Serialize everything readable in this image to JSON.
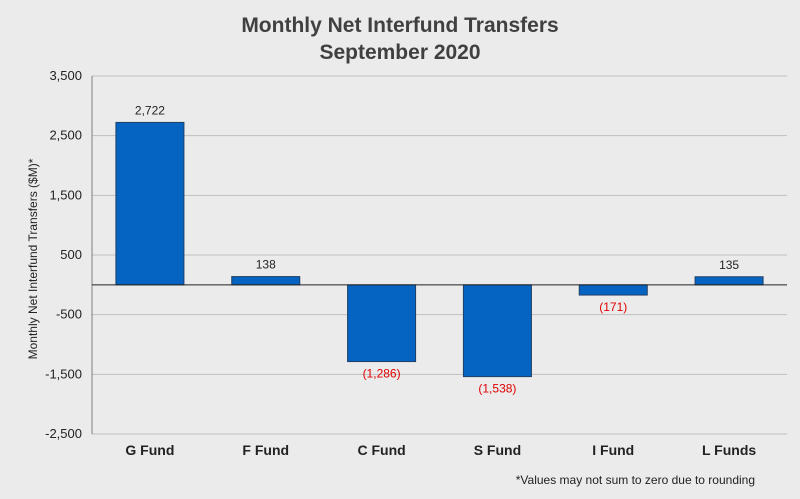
{
  "chart_data": {
    "type": "bar",
    "title": [
      "Monthly Net Interfund Transfers",
      "September 2020"
    ],
    "ylabel": "Monthly Net Interfund Transfers ($M)*",
    "xlabel": "",
    "categories": [
      "G Fund",
      "F Fund",
      "C Fund",
      "S Fund",
      "I Fund",
      "L Funds"
    ],
    "values": [
      2722,
      138,
      -1286,
      -1538,
      -171,
      135
    ],
    "data_labels": [
      "2,722",
      "138",
      "(1,286)",
      "(1,538)",
      "(171)",
      "135"
    ],
    "ylim": [
      -2500,
      3500
    ],
    "yticks": [
      -2500,
      -1500,
      -500,
      500,
      1500,
      2500,
      3500
    ],
    "ytick_labels": [
      "-2,500",
      "-1,500",
      "-500",
      "500",
      "1,500",
      "2,500",
      "3,500"
    ],
    "grid": true,
    "legend": "none",
    "footnote": "*Values may not sum to zero due to rounding",
    "colors": {
      "bar": "#0563c1",
      "bar_edge": "#1f3f66",
      "negative_label": "#e00000",
      "grid": "#bfbfbf",
      "background": "#ebebeb"
    }
  }
}
